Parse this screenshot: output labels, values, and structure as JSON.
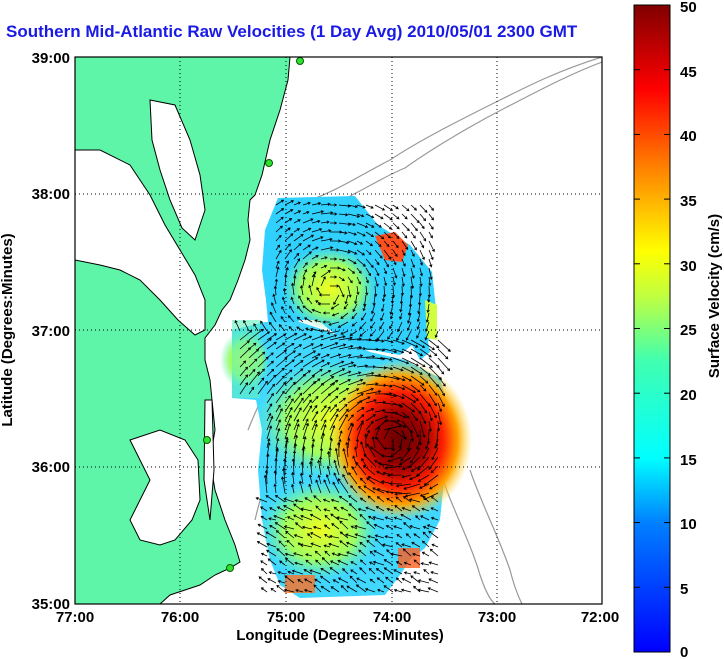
{
  "title": "Southern Mid-Atlantic Raw Velocities (1 Day Avg) 2010/05/01 2300 GMT",
  "map": {
    "xlabel": "Longitude (Degrees:Minutes)",
    "ylabel": "Latitude (Degrees:Minutes)",
    "x_ticks": [
      "77:00",
      "76:00",
      "75:00",
      "74:00",
      "73:00",
      "72:00"
    ],
    "y_ticks": [
      "39:00",
      "38:00",
      "37:00",
      "36:00",
      "35:00"
    ],
    "lon_range": [
      -77,
      -72
    ],
    "lat_range": [
      35,
      39
    ],
    "land_color": "#5ff5a8",
    "grid": "dotted"
  },
  "colorbar": {
    "label": "Surface Velocity (cm/s)",
    "ticks": [
      "0",
      "5",
      "10",
      "15",
      "20",
      "25",
      "30",
      "35",
      "40",
      "45",
      "50"
    ],
    "range": [
      0,
      50
    ],
    "colormap": "jet"
  }
}
